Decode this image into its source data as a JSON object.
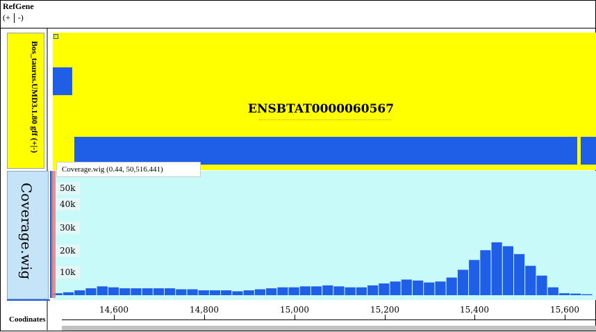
{
  "refgene": {
    "title": "RefGene",
    "strand_plus": "(+",
    "strand_minus": "-)"
  },
  "gff_track": {
    "label": "Bos_taurus.UMD3.1.80 gff (+|-)",
    "collapse_symbol": "−",
    "gene_name": "ENSBTAT0000060567"
  },
  "coverage_track": {
    "label": "Coverage.wig",
    "tooltip": "Coverage.wig (0.44, 50,516.441)",
    "yticks": [
      "50k",
      "40k",
      "30k",
      "20k",
      "10k"
    ],
    "colors": {
      "bar": "#1f5ee6",
      "background": "#c8fafa"
    }
  },
  "axis": {
    "label": "Coodinates",
    "ticks": [
      "14,600",
      "14,800",
      "15,000",
      "15,200",
      "15,400",
      "15,600"
    ]
  },
  "chart_data": {
    "type": "bar",
    "ylim": [
      0,
      55000
    ],
    "x": [
      14475,
      14500,
      14525,
      14550,
      14575,
      14600,
      14625,
      14650,
      14675,
      14700,
      14725,
      14750,
      14775,
      14800,
      14825,
      14850,
      14875,
      14900,
      14925,
      14950,
      14975,
      15000,
      15025,
      15050,
      15075,
      15100,
      15125,
      15150,
      15175,
      15200,
      15225,
      15250,
      15275,
      15300,
      15325,
      15350,
      15375,
      15400,
      15425,
      15450,
      15475,
      15500,
      15525,
      15550,
      15575,
      15600,
      15625,
      15650
    ],
    "values": [
      1000,
      1500,
      2500,
      3500,
      4500,
      4000,
      3500,
      3500,
      3500,
      3500,
      3500,
      3000,
      3000,
      2500,
      2500,
      2500,
      2000,
      2500,
      3000,
      3500,
      4000,
      4000,
      4500,
      4500,
      5000,
      4500,
      4000,
      4000,
      5000,
      6000,
      7000,
      8000,
      7500,
      6500,
      7000,
      9000,
      13000,
      18000,
      23000,
      27000,
      25000,
      21000,
      15000,
      10000,
      4000,
      1000,
      800,
      500
    ]
  }
}
